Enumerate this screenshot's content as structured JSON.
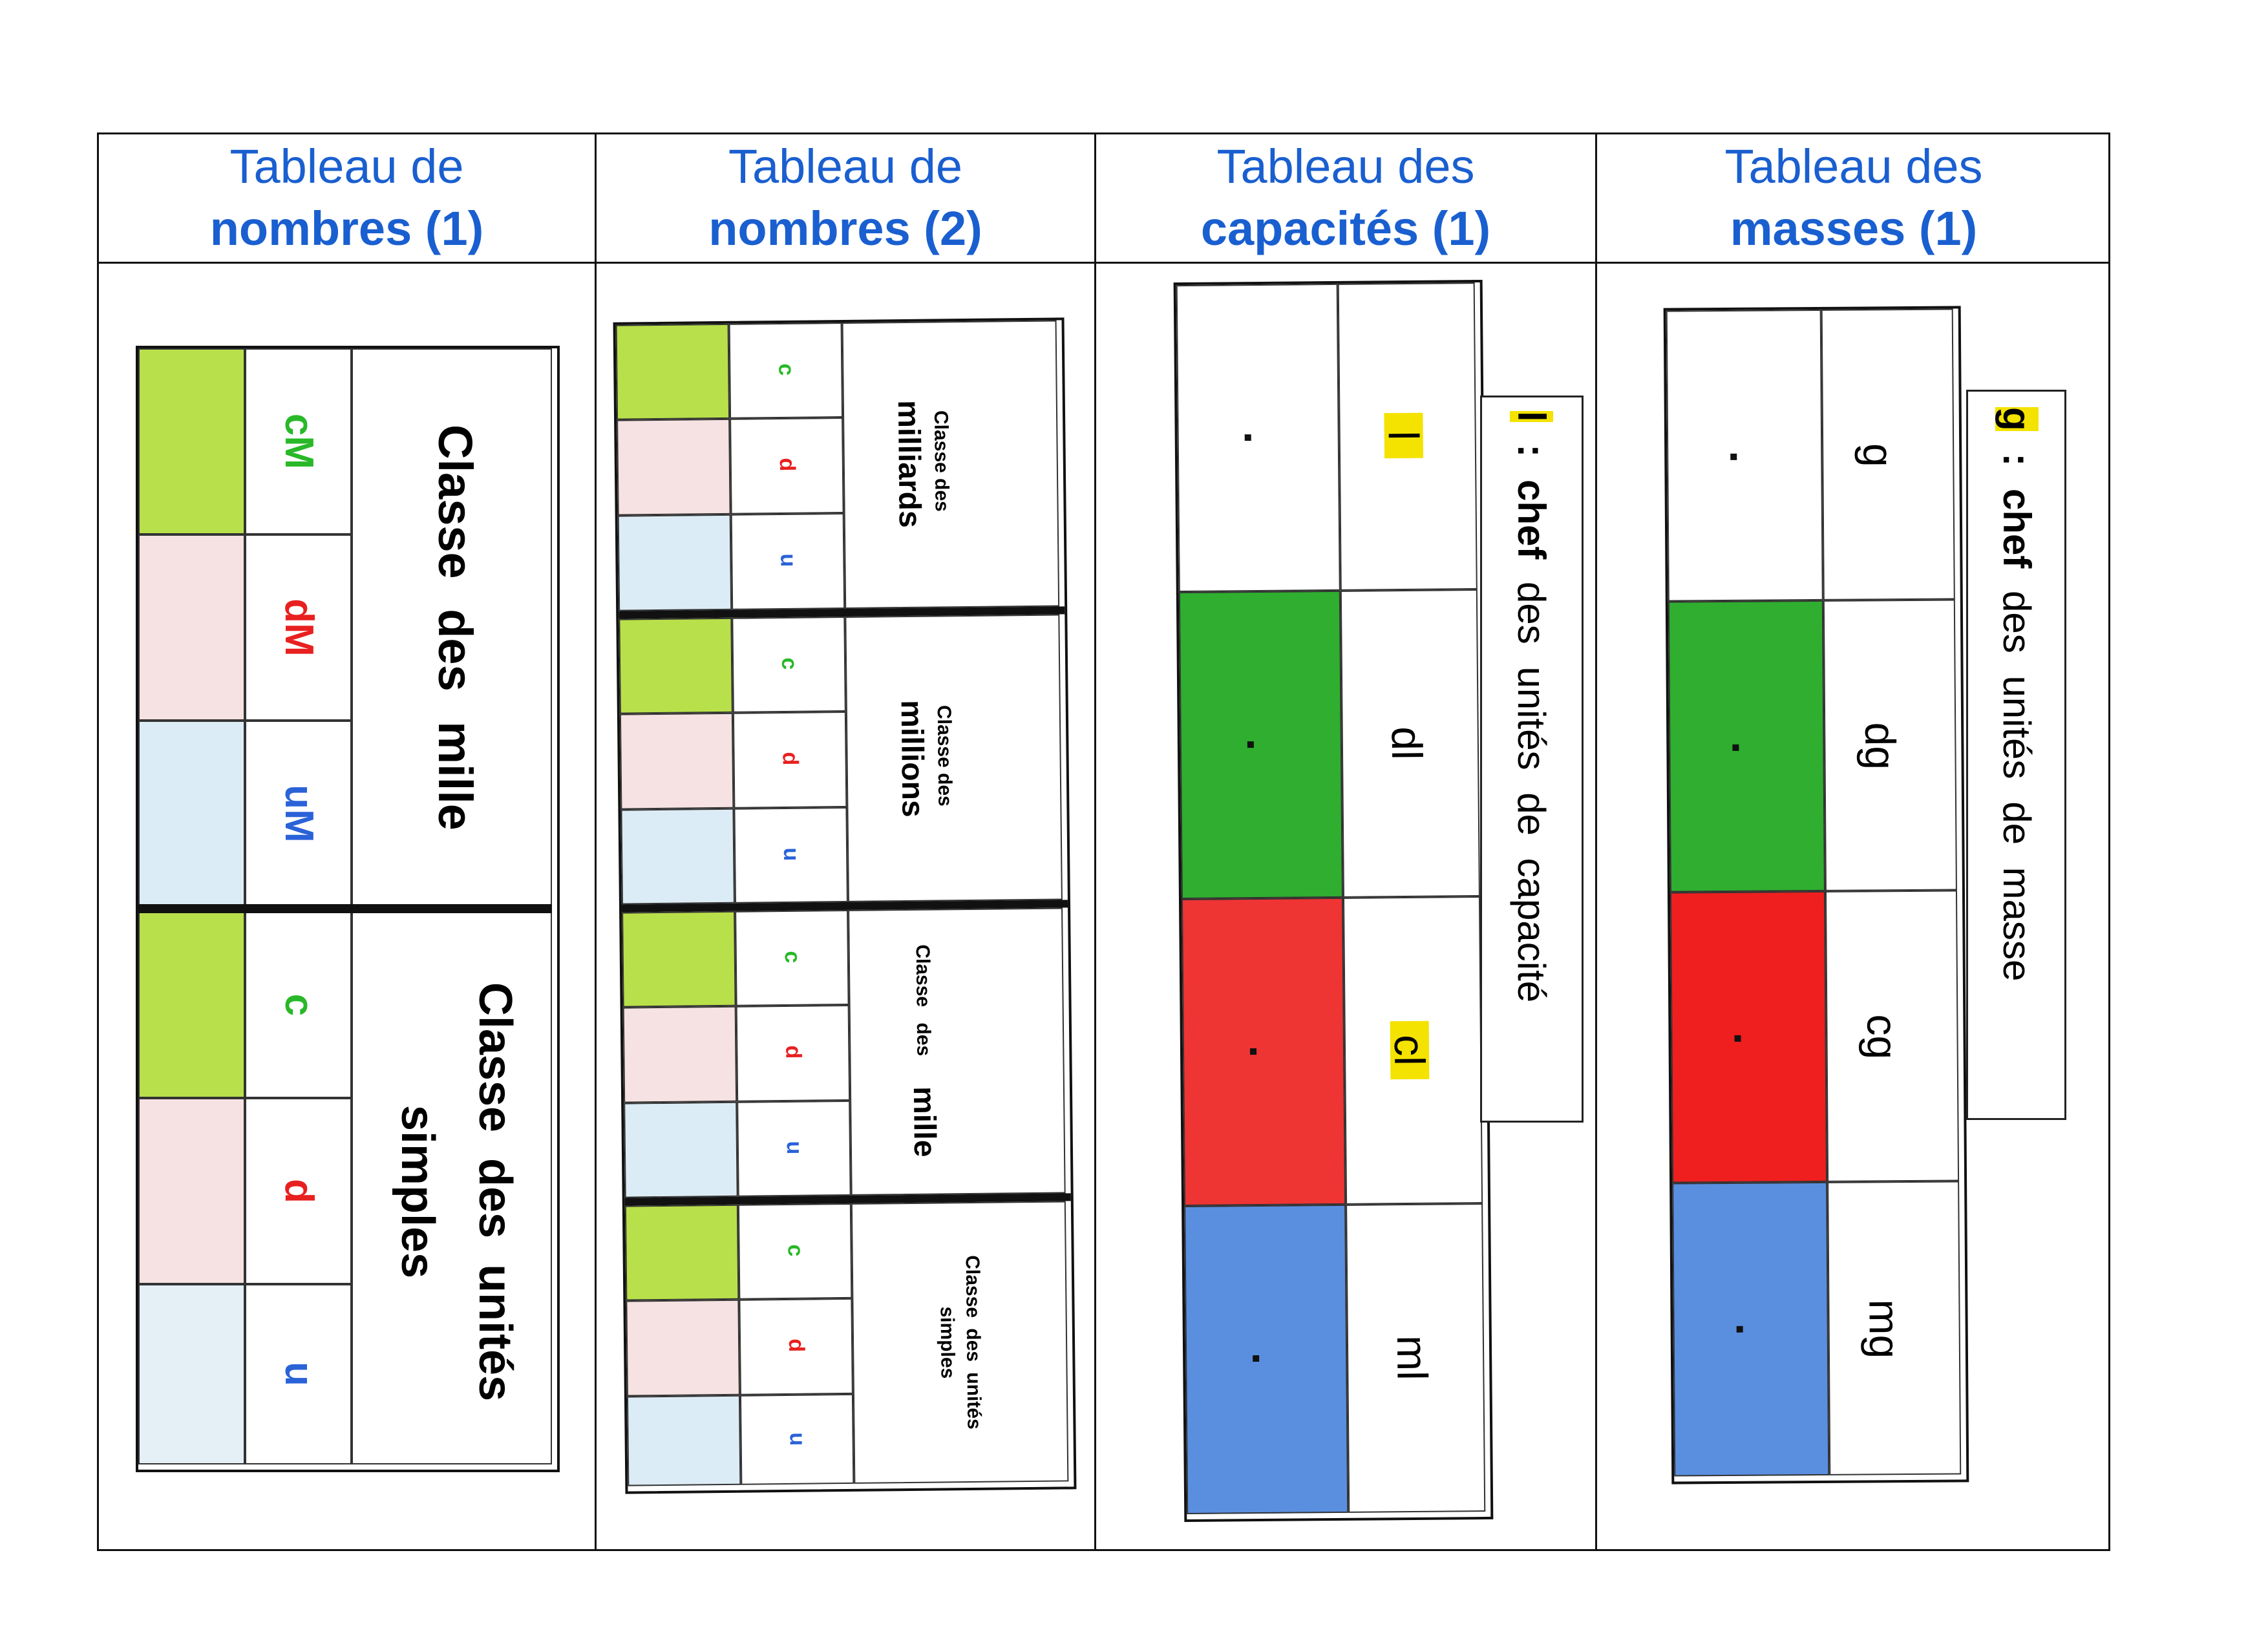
{
  "headers": [
    {
      "line1": "Tableau de",
      "line2": "nombres (1)"
    },
    {
      "line1": "Tableau de",
      "line2": "nombres (2)"
    },
    {
      "line1": "Tableau des",
      "line2": "capacités (1)"
    },
    {
      "line1": "Tableau des",
      "line2": "masses (1)"
    }
  ],
  "nombres1": {
    "class_mille": "Classe des mille",
    "class_simples_1": "Classe des unités",
    "class_simples_2": "simples",
    "units": [
      "cM",
      "dM",
      "uM",
      "c",
      "d",
      "u"
    ]
  },
  "nombres2": {
    "groups": [
      {
        "line1": "Classe des",
        "line2": "milliards"
      },
      {
        "line1": "Classe des",
        "line2": "millions"
      },
      {
        "line1": "Classe des",
        "line2": "mille"
      },
      {
        "line1": "Classe des unités",
        "line2": "simples"
      }
    ],
    "units": [
      "c",
      "d",
      "u"
    ]
  },
  "capacites": {
    "units": [
      "l",
      "dl",
      "cl",
      "ml"
    ],
    "note_key": "l",
    "note_strong": ": chef",
    "note_rest": "des unités de capacité"
  },
  "masses": {
    "units": [
      "g",
      "dg",
      "cg",
      "mg"
    ],
    "note_key": "g",
    "note_strong": ": chef",
    "note_rest": "des unités de masse"
  },
  "colors": {
    "header_blue": "#1a5fd0",
    "lime": "#b8e04a",
    "pale_pink": "#f6e2e2",
    "pale_blue": "#dcecf6",
    "green": "#2fae2f",
    "red": "#ef3434",
    "blue": "#5a8fe0",
    "unit_green": "#28b828",
    "unit_red": "#e82020",
    "unit_blue": "#2a62d8",
    "highlight": "#f4e200"
  }
}
